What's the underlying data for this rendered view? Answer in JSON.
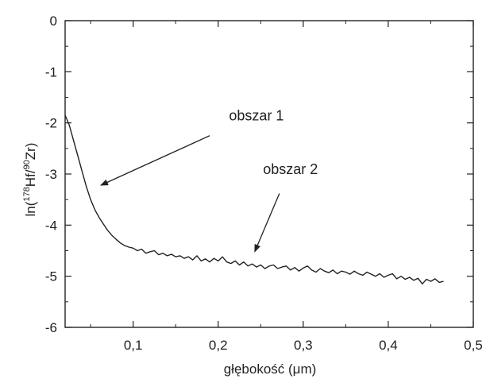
{
  "chart_data": {
    "type": "line",
    "title": "",
    "xlabel": "głębokość (μm)",
    "ylabel": {
      "prefix": "ln(",
      "sup1": "178",
      "mid": "Hf/",
      "sup2": "90",
      "suffix": "Zr)"
    },
    "xlim": [
      0.02,
      0.5
    ],
    "ylim": [
      -6,
      0
    ],
    "x_ticks": [
      0.1,
      0.2,
      0.3,
      0.4,
      0.5
    ],
    "x_tick_labels": [
      "0,1",
      "0,2",
      "0,3",
      "0,4",
      "0,5"
    ],
    "y_ticks": [
      0,
      -1,
      -2,
      -3,
      -4,
      -5,
      -6
    ],
    "y_tick_labels": [
      "0",
      "-1",
      "-2",
      "-3",
      "-4",
      "-5",
      "-6"
    ],
    "grid": false,
    "series": [
      {
        "color": "#222222",
        "x": [
          0.02,
          0.025,
          0.03,
          0.035,
          0.04,
          0.045,
          0.05,
          0.055,
          0.06,
          0.065,
          0.07,
          0.075,
          0.08,
          0.085,
          0.09,
          0.095,
          0.1,
          0.105,
          0.11,
          0.115,
          0.12,
          0.125,
          0.13,
          0.135,
          0.14,
          0.145,
          0.15,
          0.155,
          0.16,
          0.165,
          0.17,
          0.175,
          0.18,
          0.185,
          0.19,
          0.195,
          0.2,
          0.205,
          0.21,
          0.215,
          0.22,
          0.225,
          0.23,
          0.235,
          0.24,
          0.245,
          0.25,
          0.255,
          0.26,
          0.265,
          0.27,
          0.275,
          0.28,
          0.285,
          0.29,
          0.295,
          0.3,
          0.305,
          0.31,
          0.315,
          0.32,
          0.325,
          0.33,
          0.335,
          0.34,
          0.345,
          0.35,
          0.355,
          0.36,
          0.365,
          0.37,
          0.375,
          0.38,
          0.385,
          0.39,
          0.395,
          0.4,
          0.405,
          0.41,
          0.415,
          0.42,
          0.425,
          0.43,
          0.435,
          0.44,
          0.445,
          0.45,
          0.455,
          0.46,
          0.465
        ],
        "y": [
          -1.85,
          -2.05,
          -2.35,
          -2.65,
          -2.95,
          -3.25,
          -3.5,
          -3.7,
          -3.85,
          -3.98,
          -4.1,
          -4.2,
          -4.28,
          -4.35,
          -4.4,
          -4.43,
          -4.45,
          -4.5,
          -4.47,
          -4.55,
          -4.52,
          -4.5,
          -4.58,
          -4.55,
          -4.6,
          -4.57,
          -4.62,
          -4.6,
          -4.65,
          -4.62,
          -4.68,
          -4.6,
          -4.7,
          -4.66,
          -4.72,
          -4.65,
          -4.7,
          -4.62,
          -4.72,
          -4.75,
          -4.7,
          -4.78,
          -4.72,
          -4.8,
          -4.76,
          -4.82,
          -4.78,
          -4.85,
          -4.8,
          -4.78,
          -4.85,
          -4.82,
          -4.8,
          -4.88,
          -4.83,
          -4.9,
          -4.84,
          -4.8,
          -4.88,
          -4.92,
          -4.85,
          -4.9,
          -4.93,
          -4.88,
          -4.95,
          -4.9,
          -4.92,
          -4.96,
          -4.9,
          -4.95,
          -4.98,
          -4.92,
          -4.96,
          -5.0,
          -4.95,
          -5.02,
          -4.98,
          -4.95,
          -5.05,
          -5.0,
          -5.06,
          -5.02,
          -5.08,
          -5.04,
          -5.15,
          -5.06,
          -5.1,
          -5.05,
          -5.12,
          -5.1
        ]
      }
    ],
    "annotations": [
      {
        "text": "obszar 1",
        "text_x": 0.245,
        "text_y": -1.95,
        "arrow_from": [
          0.19,
          -2.25
        ],
        "arrow_to": [
          0.062,
          -3.22
        ]
      },
      {
        "text": "obszar 2",
        "text_x": 0.285,
        "text_y": -3.0,
        "arrow_from": [
          0.272,
          -3.38
        ],
        "arrow_to": [
          0.243,
          -4.52
        ]
      }
    ]
  }
}
